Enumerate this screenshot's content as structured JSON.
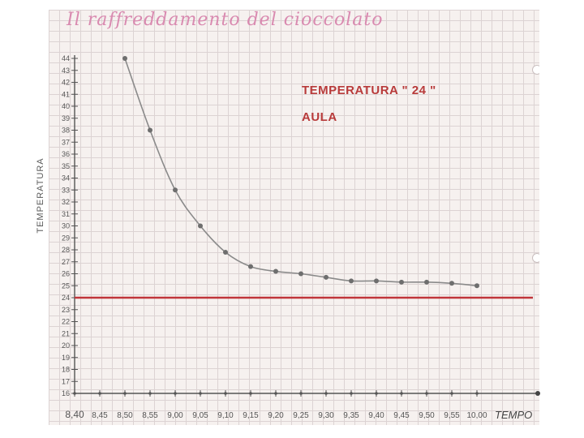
{
  "chart_data": {
    "type": "line",
    "title": "Il raffreddamento del cioccolato",
    "xlabel": "TEMPO",
    "ylabel": "TEMPERATURA",
    "annotation": [
      "TEMPERATURA \" 24 \"",
      "AULA"
    ],
    "x_ticks": [
      "8,40",
      "8,45",
      "8,50",
      "8,55",
      "9,00",
      "9,05",
      "9,10",
      "9,15",
      "9,20",
      "9,25",
      "9,30",
      "9,35",
      "9,40",
      "9,45",
      "9,50",
      "9,55",
      "10,00"
    ],
    "y_ticks": [
      16,
      17,
      18,
      19,
      20,
      21,
      22,
      23,
      24,
      25,
      26,
      27,
      28,
      29,
      30,
      31,
      32,
      33,
      34,
      35,
      36,
      37,
      38,
      39,
      40,
      41,
      42,
      43,
      44
    ],
    "ylim": [
      16,
      44
    ],
    "series": [
      {
        "name": "",
        "color": "#8a8a8a",
        "x": [
          "8,50",
          "8,55",
          "9,00",
          "9,05",
          "9,10",
          "9,15",
          "9,20",
          "9,25",
          "9,30",
          "9,35",
          "9,40",
          "9,45",
          "9,50",
          "9,55",
          "10,00"
        ],
        "values": [
          44,
          38,
          33,
          30,
          27.8,
          26.6,
          26.2,
          26,
          25.7,
          25.4,
          25.4,
          25.3,
          25.3,
          25.2,
          25
        ]
      }
    ],
    "reference_line": {
      "value": 24,
      "color": "#c0353a"
    }
  }
}
